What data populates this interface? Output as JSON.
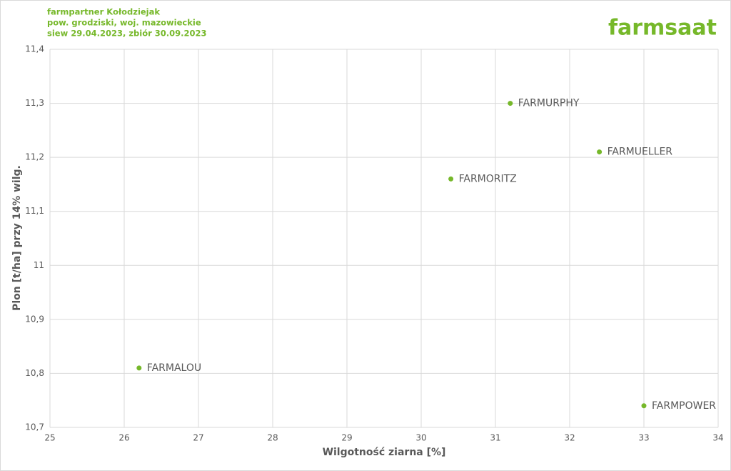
{
  "logo": "farmsaat",
  "chart_data": {
    "type": "scatter",
    "title": "farmpartner Kołodziejak",
    "subtitle": [
      "pow. grodziski, woj. mazowieckie",
      "siew 29.04.2023, zbiór 30.09.2023"
    ],
    "xlabel": "Wilgotność ziarna [%]",
    "ylabel": "Plon [t/ha] przy 14% wilg.",
    "labels": [
      "FARMURPHY",
      "FARMUELLER",
      "FARMORITZ",
      "FARMALOU",
      "FARMPOWER"
    ],
    "x": [
      31.2,
      32.4,
      30.4,
      26.2,
      33.0
    ],
    "values": [
      11.3,
      11.21,
      11.16,
      10.81,
      10.74
    ],
    "color": "#76b82a",
    "xlim": [
      25,
      34
    ],
    "xticks": [
      25,
      26,
      27,
      28,
      29,
      30,
      31,
      32,
      33,
      34
    ],
    "ylim": [
      10.7,
      11.4
    ],
    "yticks": [
      {
        "value": 10.7,
        "label": "10,7"
      },
      {
        "value": 10.8,
        "label": "10,8"
      },
      {
        "value": 10.9,
        "label": "10,9"
      },
      11,
      {
        "value": 11.1,
        "label": "11,1"
      },
      {
        "value": 11.2,
        "label": "11,2"
      },
      {
        "value": 11.3,
        "label": "11,3"
      },
      {
        "value": 11.4,
        "label": "11,4"
      }
    ],
    "grid": true
  }
}
